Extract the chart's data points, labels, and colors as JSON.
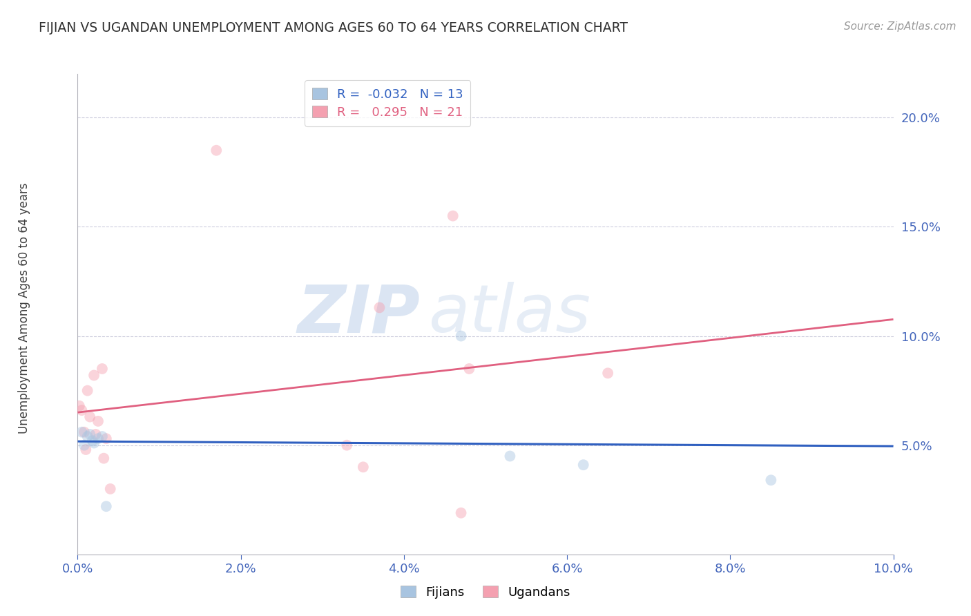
{
  "title": "FIJIAN VS UGANDAN UNEMPLOYMENT AMONG AGES 60 TO 64 YEARS CORRELATION CHART",
  "source": "Source: ZipAtlas.com",
  "ylabel": "Unemployment Among Ages 60 to 64 years",
  "legend_labels": [
    "Fijians",
    "Ugandans"
  ],
  "fijians_color": "#a8c4e0",
  "ugandans_color": "#f4a0b0",
  "fijians_line_color": "#3060c0",
  "ugandans_line_color": "#e06080",
  "fijians_R": -0.032,
  "fijians_N": 13,
  "ugandans_R": 0.295,
  "ugandans_N": 21,
  "xlim": [
    0.0,
    0.1
  ],
  "ylim": [
    0.0,
    0.22
  ],
  "xticks": [
    0.0,
    0.02,
    0.04,
    0.06,
    0.08,
    0.1
  ],
  "yticks_right": [
    0.05,
    0.1,
    0.15,
    0.2
  ],
  "fijians_x": [
    0.0005,
    0.0008,
    0.0012,
    0.0015,
    0.0018,
    0.002,
    0.0025,
    0.003,
    0.0035,
    0.047,
    0.053,
    0.062,
    0.085
  ],
  "fijians_y": [
    0.056,
    0.05,
    0.054,
    0.055,
    0.052,
    0.051,
    0.053,
    0.054,
    0.022,
    0.1,
    0.045,
    0.041,
    0.034
  ],
  "ugandans_x": [
    0.0002,
    0.0005,
    0.0008,
    0.001,
    0.0012,
    0.0015,
    0.002,
    0.0022,
    0.0025,
    0.003,
    0.0032,
    0.0035,
    0.004,
    0.017,
    0.033,
    0.035,
    0.037,
    0.046,
    0.047,
    0.048,
    0.065
  ],
  "ugandans_y": [
    0.068,
    0.066,
    0.056,
    0.048,
    0.075,
    0.063,
    0.082,
    0.055,
    0.061,
    0.085,
    0.044,
    0.053,
    0.03,
    0.185,
    0.05,
    0.04,
    0.113,
    0.155,
    0.019,
    0.085,
    0.083
  ],
  "watermark_zip": "ZIP",
  "watermark_atlas": "atlas",
  "background_color": "#ffffff",
  "title_color": "#303030",
  "axis_color": "#4466bb",
  "grid_color": "#ccccdd",
  "marker_size": 130,
  "marker_alpha": 0.45
}
